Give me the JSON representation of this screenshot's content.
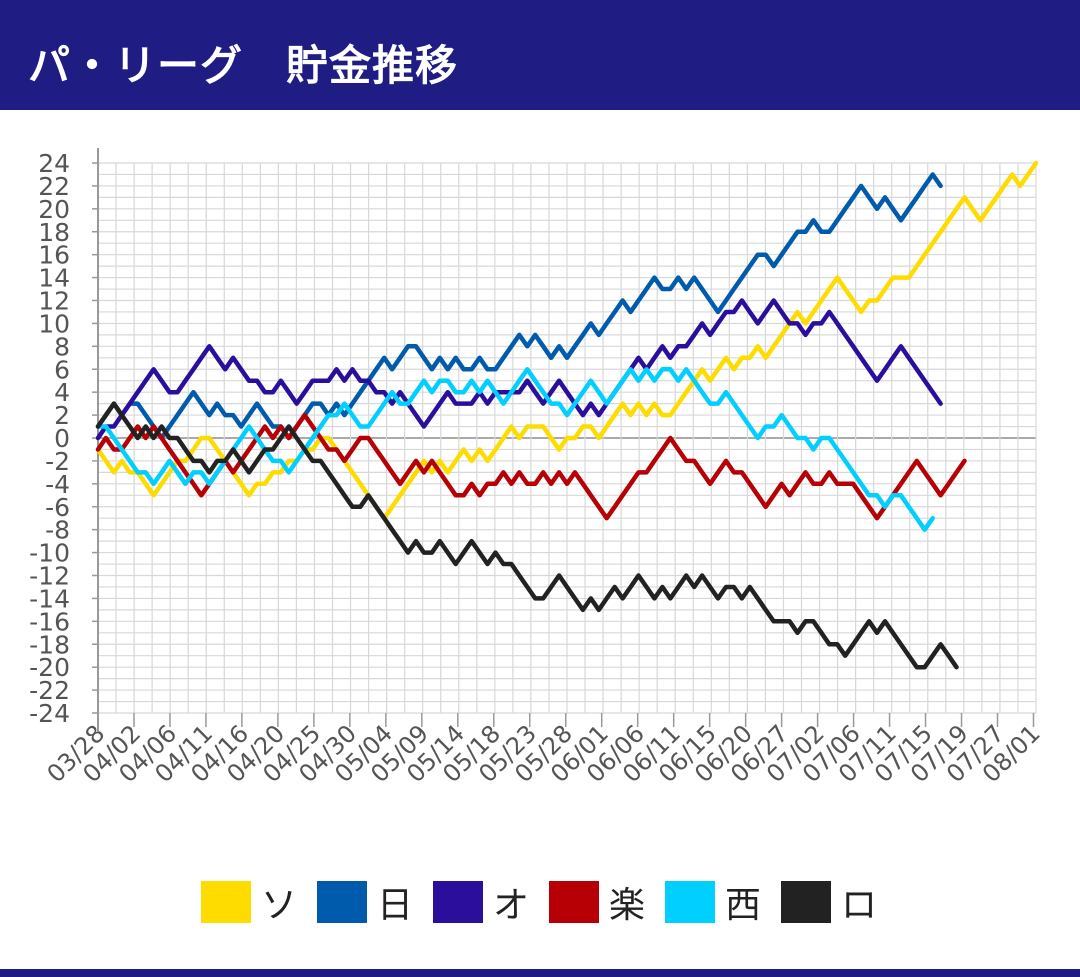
{
  "header": {
    "title": "パ・リーグ　貯金推移"
  },
  "chart_data": {
    "type": "line",
    "title": "パ・リーグ　貯金推移",
    "xlabel": "",
    "ylabel": "",
    "ylim": [
      -24,
      24
    ],
    "yticks": [
      24,
      22,
      20,
      18,
      16,
      14,
      12,
      10,
      8,
      6,
      4,
      2,
      0,
      -2,
      -4,
      -6,
      -8,
      -10,
      -12,
      -14,
      -16,
      -18,
      -20,
      -22,
      -24
    ],
    "xticks": [
      "03/28",
      "04/02",
      "04/06",
      "04/11",
      "04/16",
      "04/20",
      "04/25",
      "04/30",
      "05/04",
      "05/09",
      "05/14",
      "05/18",
      "05/23",
      "05/28",
      "06/01",
      "06/06",
      "06/11",
      "06/15",
      "06/20",
      "06/27",
      "07/02",
      "07/06",
      "07/11",
      "07/15",
      "07/19",
      "07/27",
      "08/01"
    ],
    "grid": true,
    "legend_position": "bottom",
    "colors": {
      "axis": "#999999",
      "grid": "#d8d8d8",
      "zero": "#aaaaaa",
      "tick_text": "#555555"
    },
    "series": [
      {
        "name": "ソ",
        "color": "#fedc00",
        "values": [
          -1,
          -2,
          -3,
          -2,
          -3,
          -3,
          -4,
          -5,
          -4,
          -3,
          -2,
          -2,
          -1,
          0,
          0,
          -1,
          -2,
          -3,
          -4,
          -5,
          -4,
          -4,
          -3,
          -3,
          -2,
          -2,
          -1,
          -1,
          0,
          0,
          -1,
          -2,
          -3,
          -4,
          -5,
          -6,
          -7,
          -6,
          -5,
          -4,
          -3,
          -2,
          -3,
          -2,
          -3,
          -2,
          -1,
          -2,
          -1,
          -2,
          -1,
          0,
          1,
          0,
          1,
          1,
          1,
          0,
          -1,
          0,
          0,
          1,
          1,
          0,
          1,
          2,
          3,
          2,
          3,
          2,
          3,
          2,
          2,
          3,
          4,
          5,
          6,
          5,
          6,
          7,
          6,
          7,
          7,
          8,
          7,
          8,
          9,
          10,
          11,
          10,
          11,
          12,
          13,
          14,
          13,
          12,
          11,
          12,
          12,
          13,
          14,
          14,
          14,
          15,
          16,
          17,
          18,
          19,
          20,
          21,
          20,
          19,
          20,
          21,
          22,
          23,
          22,
          23,
          24
        ]
      },
      {
        "name": "日",
        "color": "#005bac",
        "values": [
          1,
          2,
          3,
          2,
          3,
          3,
          2,
          1,
          0,
          1,
          2,
          3,
          4,
          3,
          2,
          3,
          2,
          2,
          1,
          2,
          3,
          2,
          1,
          1,
          0,
          1,
          2,
          3,
          3,
          2,
          3,
          2,
          3,
          4,
          5,
          6,
          7,
          6,
          7,
          8,
          8,
          7,
          6,
          7,
          6,
          7,
          6,
          6,
          7,
          6,
          6,
          7,
          8,
          9,
          8,
          9,
          8,
          7,
          8,
          7,
          8,
          9,
          10,
          9,
          10,
          11,
          12,
          11,
          12,
          13,
          14,
          13,
          13,
          14,
          13,
          14,
          13,
          12,
          11,
          12,
          13,
          14,
          15,
          16,
          16,
          15,
          16,
          17,
          18,
          18,
          19,
          18,
          18,
          19,
          20,
          21,
          22,
          21,
          20,
          21,
          20,
          19,
          20,
          21,
          22,
          23,
          22
        ]
      },
      {
        "name": "オ",
        "color": "#2b0f9c",
        "values": [
          0,
          1,
          1,
          2,
          3,
          4,
          5,
          6,
          5,
          4,
          4,
          5,
          6,
          7,
          8,
          7,
          6,
          7,
          6,
          5,
          5,
          4,
          4,
          5,
          4,
          3,
          4,
          5,
          5,
          5,
          6,
          5,
          6,
          5,
          5,
          4,
          4,
          3,
          4,
          3,
          2,
          1,
          2,
          3,
          4,
          3,
          3,
          3,
          4,
          3,
          4,
          4,
          4,
          4,
          5,
          4,
          3,
          4,
          5,
          4,
          3,
          2,
          3,
          2,
          3,
          4,
          5,
          6,
          7,
          6,
          7,
          8,
          7,
          8,
          8,
          9,
          10,
          9,
          10,
          11,
          11,
          12,
          11,
          10,
          11,
          12,
          11,
          10,
          10,
          9,
          10,
          10,
          11,
          10,
          9,
          8,
          7,
          6,
          5,
          6,
          7,
          8,
          7,
          6,
          5,
          4,
          3
        ]
      },
      {
        "name": "楽",
        "color": "#b60005",
        "values": [
          -1,
          0,
          -1,
          -1,
          0,
          1,
          0,
          1,
          0,
          -1,
          -2,
          -3,
          -4,
          -5,
          -4,
          -3,
          -2,
          -3,
          -2,
          -1,
          0,
          1,
          0,
          1,
          0,
          1,
          2,
          1,
          0,
          -1,
          -1,
          -2,
          -1,
          0,
          0,
          -1,
          -2,
          -3,
          -4,
          -3,
          -2,
          -3,
          -2,
          -3,
          -4,
          -5,
          -5,
          -4,
          -5,
          -4,
          -4,
          -3,
          -4,
          -3,
          -4,
          -4,
          -3,
          -4,
          -3,
          -4,
          -3,
          -4,
          -5,
          -6,
          -7,
          -6,
          -5,
          -4,
          -3,
          -3,
          -2,
          -1,
          0,
          -1,
          -2,
          -2,
          -3,
          -4,
          -3,
          -2,
          -3,
          -3,
          -4,
          -5,
          -6,
          -5,
          -4,
          -5,
          -4,
          -3,
          -4,
          -4,
          -3,
          -4,
          -4,
          -4,
          -5,
          -6,
          -7,
          -6,
          -5,
          -4,
          -3,
          -2,
          -3,
          -4,
          -5,
          -4,
          -3,
          -2
        ]
      },
      {
        "name": "西",
        "color": "#00cfff",
        "values": [
          1,
          1,
          0,
          -1,
          -2,
          -3,
          -3,
          -4,
          -3,
          -2,
          -3,
          -4,
          -3,
          -3,
          -4,
          -3,
          -2,
          -1,
          0,
          1,
          0,
          -1,
          -2,
          -2,
          -3,
          -2,
          -1,
          0,
          1,
          2,
          2,
          3,
          2,
          1,
          1,
          2,
          3,
          4,
          3,
          3,
          4,
          5,
          4,
          5,
          5,
          4,
          4,
          5,
          4,
          5,
          4,
          3,
          4,
          5,
          6,
          5,
          4,
          3,
          3,
          2,
          3,
          4,
          5,
          4,
          3,
          4,
          5,
          6,
          5,
          6,
          5,
          6,
          6,
          5,
          6,
          5,
          4,
          3,
          3,
          4,
          3,
          2,
          1,
          0,
          1,
          1,
          2,
          1,
          0,
          0,
          -1,
          0,
          0,
          -1,
          -2,
          -3,
          -4,
          -5,
          -5,
          -6,
          -5,
          -5,
          -6,
          -7,
          -8,
          -7
        ]
      },
      {
        "name": "ロ",
        "color": "#222222",
        "values": [
          1,
          2,
          3,
          2,
          1,
          0,
          1,
          0,
          1,
          0,
          0,
          -1,
          -2,
          -2,
          -3,
          -2,
          -2,
          -1,
          -2,
          -3,
          -2,
          -1,
          -1,
          0,
          1,
          0,
          -1,
          -2,
          -2,
          -3,
          -4,
          -5,
          -6,
          -6,
          -5,
          -6,
          -7,
          -8,
          -9,
          -10,
          -9,
          -10,
          -10,
          -9,
          -10,
          -11,
          -10,
          -9,
          -10,
          -11,
          -10,
          -11,
          -11,
          -12,
          -13,
          -14,
          -14,
          -13,
          -12,
          -13,
          -14,
          -15,
          -14,
          -15,
          -14,
          -13,
          -14,
          -13,
          -12,
          -13,
          -14,
          -13,
          -14,
          -13,
          -12,
          -13,
          -12,
          -13,
          -14,
          -13,
          -13,
          -14,
          -13,
          -14,
          -15,
          -16,
          -16,
          -16,
          -17,
          -16,
          -16,
          -17,
          -18,
          -18,
          -19,
          -18,
          -17,
          -16,
          -17,
          -16,
          -17,
          -18,
          -19,
          -20,
          -20,
          -19,
          -18,
          -19,
          -20
        ]
      }
    ]
  }
}
